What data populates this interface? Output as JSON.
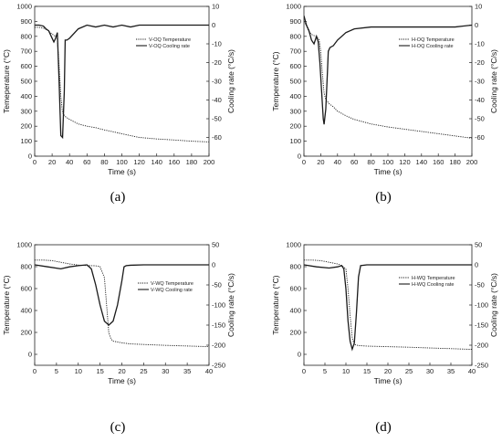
{
  "colors": {
    "line": "#1a1a1a",
    "axis": "#222222",
    "background": "#ffffff"
  },
  "chart_data": [
    {
      "type": "line",
      "panel_label": "(a)",
      "xlabel": "Time (s)",
      "ylabel": "Temeperature (°C)",
      "y2label": "Cooling rate (°C/s)",
      "xlim": [
        0,
        200
      ],
      "ylim": [
        0,
        1000
      ],
      "y2lim": [
        -70,
        10
      ],
      "xticks": [
        0,
        20,
        40,
        60,
        80,
        100,
        120,
        140,
        160,
        180,
        200
      ],
      "yticks": [
        0,
        100,
        200,
        300,
        400,
        500,
        600,
        700,
        800,
        900,
        1000
      ],
      "y2ticks": [
        10,
        0,
        -10,
        -20,
        -30,
        -40,
        -50,
        -60
      ],
      "grid": false,
      "legend_position": "top-right",
      "series": [
        {
          "name": "V-OQ Temperature",
          "axis": "left",
          "style": "dotted",
          "x": [
            0,
            5,
            10,
            15,
            20,
            24,
            26,
            28,
            30,
            32,
            35,
            40,
            50,
            60,
            70,
            80,
            100,
            120,
            140,
            160,
            180,
            200
          ],
          "y": [
            860,
            860,
            855,
            840,
            815,
            800,
            780,
            600,
            400,
            290,
            265,
            245,
            215,
            200,
            190,
            175,
            150,
            125,
            115,
            108,
            100,
            95
          ]
        },
        {
          "name": "V-OQ Cooling rate",
          "axis": "right",
          "style": "solid",
          "x": [
            0,
            5,
            10,
            13,
            16,
            19,
            22,
            24,
            26,
            28,
            30,
            32,
            34,
            35,
            37,
            40,
            50,
            60,
            70,
            80,
            90,
            100,
            110,
            120,
            140,
            160,
            180,
            200
          ],
          "y": [
            0,
            0,
            -0.5,
            -2,
            -3,
            -6,
            -9,
            -7,
            -4,
            -30,
            -59,
            -60,
            -35,
            -8,
            -8,
            -7,
            -2,
            0,
            -1,
            0,
            -1,
            0,
            -1,
            0,
            0,
            0,
            0,
            0
          ]
        }
      ]
    },
    {
      "type": "line",
      "panel_label": "(b)",
      "xlabel": "Time (s)",
      "ylabel": "Temperature (°C)",
      "y2label": "Cooling rate (°C/s)",
      "xlim": [
        0,
        200
      ],
      "ylim": [
        0,
        1000
      ],
      "y2lim": [
        -70,
        10
      ],
      "xticks": [
        0,
        20,
        40,
        60,
        80,
        100,
        120,
        140,
        160,
        180,
        200
      ],
      "yticks": [
        0,
        100,
        200,
        300,
        400,
        500,
        600,
        700,
        800,
        900,
        1000
      ],
      "y2ticks": [
        10,
        0,
        -10,
        -20,
        -30,
        -40,
        -50,
        -60
      ],
      "grid": false,
      "legend_position": "top-right",
      "series": [
        {
          "name": "H-OQ Temperature",
          "axis": "left",
          "style": "dotted",
          "x": [
            0,
            3,
            6,
            10,
            14,
            18,
            20,
            22,
            24,
            26,
            28,
            30,
            35,
            40,
            50,
            60,
            80,
            100,
            120,
            140,
            160,
            180,
            200
          ],
          "y": [
            900,
            870,
            830,
            810,
            800,
            780,
            700,
            550,
            420,
            380,
            365,
            350,
            330,
            300,
            270,
            245,
            215,
            195,
            180,
            165,
            150,
            135,
            120
          ]
        },
        {
          "name": "H-OQ Cooling rate",
          "axis": "right",
          "style": "solid",
          "x": [
            0,
            3,
            6,
            9,
            12,
            15,
            17,
            19,
            21,
            23,
            24,
            26,
            28,
            29,
            31,
            35,
            40,
            50,
            60,
            80,
            100,
            120,
            140,
            160,
            180,
            200
          ],
          "y": [
            5,
            0,
            -3,
            -8,
            -10,
            -6,
            -9,
            -20,
            -35,
            -50,
            -53,
            -45,
            -25,
            -14,
            -12,
            -11,
            -8,
            -4,
            -2,
            -1,
            -1,
            -1,
            -1,
            -1,
            -1,
            0
          ]
        }
      ]
    },
    {
      "type": "line",
      "panel_label": "(c)",
      "xlabel": "Time (s)",
      "ylabel": "Temperature (°C)",
      "y2label": "Cooling rate (°C/s)",
      "xlim": [
        0,
        40
      ],
      "ylim": [
        -100,
        1000
      ],
      "y2lim": [
        -250,
        50
      ],
      "xticks": [
        0,
        5,
        10,
        15,
        20,
        25,
        30,
        35,
        40
      ],
      "yticks": [
        0,
        200,
        400,
        600,
        800,
        1000
      ],
      "y2ticks": [
        50,
        0,
        -50,
        -100,
        -150,
        -200,
        -250
      ],
      "grid": false,
      "legend_position": "center-right",
      "series": [
        {
          "name": "V-WQ Temperature",
          "axis": "left",
          "style": "dotted",
          "x": [
            0,
            2,
            4,
            6,
            8,
            10,
            12,
            14,
            15,
            16,
            16.5,
            17,
            17.5,
            18,
            20,
            22,
            25,
            30,
            35,
            40
          ],
          "y": [
            860,
            860,
            855,
            840,
            825,
            815,
            810,
            808,
            800,
            700,
            450,
            200,
            140,
            120,
            105,
            95,
            90,
            82,
            76,
            70
          ]
        },
        {
          "name": "V-WQ Cooling rate",
          "axis": "right",
          "style": "solid",
          "x": [
            0,
            3,
            6,
            8,
            10,
            12,
            13,
            14,
            15,
            16,
            17,
            18,
            19,
            20,
            20.5,
            21,
            22,
            25,
            30,
            35,
            40
          ],
          "y": [
            0,
            -5,
            -10,
            -5,
            -2,
            0,
            -10,
            -50,
            -100,
            -140,
            -150,
            -140,
            -100,
            -40,
            -5,
            -2,
            -1,
            0,
            0,
            0,
            0
          ]
        }
      ]
    },
    {
      "type": "line",
      "panel_label": "(d)",
      "xlabel": "Time (s)",
      "ylabel": "Temperature (°C)",
      "y2label": "Cooling rate (°C/s)",
      "xlim": [
        0,
        40
      ],
      "ylim": [
        -100,
        1000
      ],
      "y2lim": [
        -250,
        50
      ],
      "xticks": [
        0,
        5,
        10,
        15,
        20,
        25,
        30,
        35,
        40
      ],
      "yticks": [
        0,
        200,
        400,
        600,
        800,
        1000
      ],
      "y2ticks": [
        50,
        0,
        -50,
        -100,
        -150,
        -200,
        -250
      ],
      "grid": false,
      "legend_position": "top-right",
      "series": [
        {
          "name": "H-WQ Temperature",
          "axis": "left",
          "style": "dotted",
          "x": [
            0,
            2,
            4,
            6,
            8,
            9,
            10,
            10.5,
            11,
            11.5,
            12,
            13,
            15,
            20,
            25,
            30,
            35,
            40
          ],
          "y": [
            860,
            860,
            855,
            840,
            825,
            810,
            780,
            600,
            350,
            150,
            90,
            80,
            75,
            70,
            65,
            58,
            52,
            45
          ]
        },
        {
          "name": "H-WQ Cooling rate",
          "axis": "right",
          "style": "solid",
          "x": [
            0,
            3,
            6,
            8,
            9,
            9.5,
            10,
            10.5,
            11,
            11.5,
            12,
            12.5,
            13,
            13.5,
            15,
            20,
            25,
            30,
            35,
            40
          ],
          "y": [
            0,
            -5,
            -8,
            -5,
            -2,
            -10,
            -60,
            -140,
            -190,
            -210,
            -195,
            -120,
            -30,
            -2,
            0,
            0,
            0,
            0,
            0,
            0
          ]
        }
      ]
    }
  ]
}
